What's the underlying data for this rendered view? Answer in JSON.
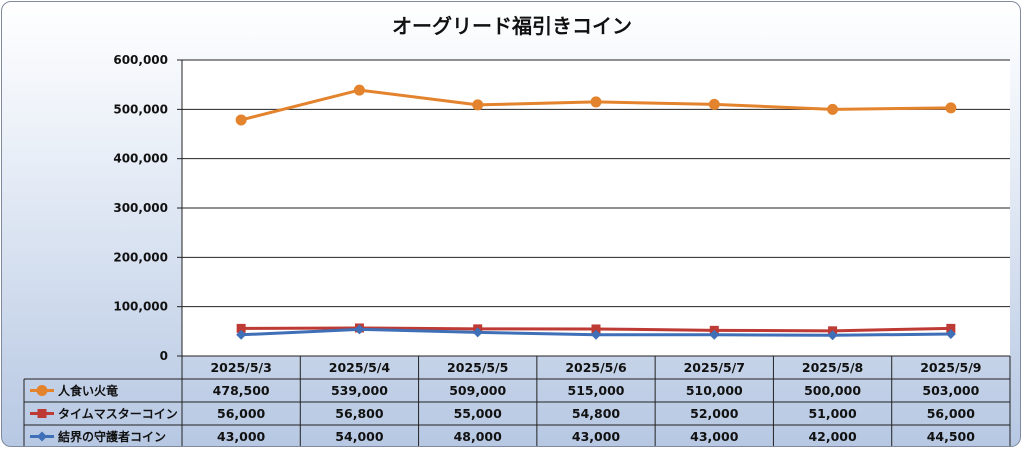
{
  "chart_data": {
    "type": "line",
    "title": "オーグリード福引きコイン",
    "categories": [
      "2025/5/3",
      "2025/5/4",
      "2025/5/5",
      "2025/5/6",
      "2025/5/7",
      "2025/5/8",
      "2025/5/9"
    ],
    "ylim": [
      0,
      600000
    ],
    "yticks": [
      0,
      100000,
      200000,
      300000,
      400000,
      500000,
      600000
    ],
    "ytick_labels": [
      "0",
      "100,000",
      "200,000",
      "300,000",
      "400,000",
      "500,000",
      "600,000"
    ],
    "grid": true,
    "legend_placement": "data-table",
    "series": [
      {
        "name": "人食い火竜",
        "color": "#e3832d",
        "marker": "circle",
        "values": [
          478500,
          539000,
          509000,
          515000,
          510000,
          500000,
          503000
        ],
        "labels": [
          "478,500",
          "539,000",
          "509,000",
          "515,000",
          "510,000",
          "500,000",
          "503,000"
        ]
      },
      {
        "name": "タイムマスターコイン",
        "color": "#be3a35",
        "marker": "square",
        "values": [
          56000,
          56800,
          55000,
          54800,
          52000,
          51000,
          56000
        ],
        "labels": [
          "56,000",
          "56,800",
          "55,000",
          "54,800",
          "52,000",
          "51,000",
          "56,000"
        ]
      },
      {
        "name": "結界の守護者コイン",
        "color": "#3f6fb7",
        "marker": "diamond",
        "values": [
          43000,
          54000,
          48000,
          43000,
          43000,
          42000,
          44500
        ],
        "labels": [
          "43,000",
          "54,000",
          "48,000",
          "43,000",
          "43,000",
          "42,000",
          "44,500"
        ]
      }
    ]
  }
}
